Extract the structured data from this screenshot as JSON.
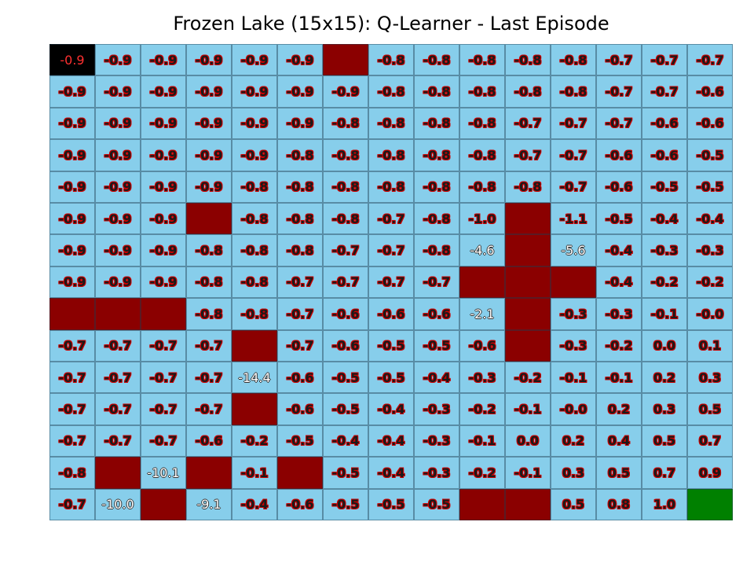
{
  "title": "Frozen Lake (15x15): Q-Learner - Last Episode",
  "colors": {
    "frozen": "#87ceeb",
    "hole": "#8b0000",
    "start": "#000000",
    "goal": "#008000",
    "value_text_outline": "#cc0000"
  },
  "grid_size": [
    15,
    15
  ],
  "cell_types": [
    [
      "S",
      "F",
      "F",
      "F",
      "F",
      "F",
      "H",
      "F",
      "F",
      "F",
      "F",
      "F",
      "F",
      "F",
      "F"
    ],
    [
      "F",
      "F",
      "F",
      "F",
      "F",
      "F",
      "F",
      "F",
      "F",
      "F",
      "F",
      "F",
      "F",
      "F",
      "F"
    ],
    [
      "F",
      "F",
      "F",
      "F",
      "F",
      "F",
      "F",
      "F",
      "F",
      "F",
      "F",
      "F",
      "F",
      "F",
      "F"
    ],
    [
      "F",
      "F",
      "F",
      "F",
      "F",
      "F",
      "F",
      "F",
      "F",
      "F",
      "F",
      "F",
      "F",
      "F",
      "F"
    ],
    [
      "F",
      "F",
      "F",
      "F",
      "F",
      "F",
      "F",
      "F",
      "F",
      "F",
      "F",
      "F",
      "F",
      "F",
      "F"
    ],
    [
      "F",
      "F",
      "F",
      "H",
      "F",
      "F",
      "F",
      "F",
      "F",
      "F",
      "H",
      "F",
      "F",
      "F",
      "F"
    ],
    [
      "F",
      "F",
      "F",
      "F",
      "F",
      "F",
      "F",
      "F",
      "F",
      "F",
      "H",
      "F",
      "F",
      "F",
      "F"
    ],
    [
      "F",
      "F",
      "F",
      "F",
      "F",
      "F",
      "F",
      "F",
      "F",
      "H",
      "H",
      "H",
      "F",
      "F",
      "F"
    ],
    [
      "H",
      "H",
      "H",
      "F",
      "F",
      "F",
      "F",
      "F",
      "F",
      "F",
      "H",
      "F",
      "F",
      "F",
      "F"
    ],
    [
      "F",
      "F",
      "F",
      "F",
      "H",
      "F",
      "F",
      "F",
      "F",
      "F",
      "H",
      "F",
      "F",
      "F",
      "F"
    ],
    [
      "F",
      "F",
      "F",
      "F",
      "F",
      "F",
      "F",
      "F",
      "F",
      "F",
      "F",
      "F",
      "F",
      "F",
      "F"
    ],
    [
      "F",
      "F",
      "F",
      "F",
      "H",
      "F",
      "F",
      "F",
      "F",
      "F",
      "F",
      "F",
      "F",
      "F",
      "F"
    ],
    [
      "F",
      "F",
      "F",
      "F",
      "F",
      "F",
      "F",
      "F",
      "F",
      "F",
      "F",
      "F",
      "F",
      "F",
      "F"
    ],
    [
      "F",
      "H",
      "F",
      "H",
      "F",
      "H",
      "F",
      "F",
      "F",
      "F",
      "F",
      "F",
      "F",
      "F",
      "F"
    ],
    [
      "F",
      "F",
      "H",
      "F",
      "F",
      "F",
      "F",
      "F",
      "F",
      "H",
      "H",
      "F",
      "F",
      "F",
      "G"
    ]
  ],
  "values": [
    [
      "-0.9",
      "-0.9",
      "-0.9",
      "-0.9",
      "-0.9",
      "-0.9",
      "",
      "-0.8",
      "-0.8",
      "-0.8",
      "-0.8",
      "-0.8",
      "-0.7",
      "-0.7",
      "-0.7"
    ],
    [
      "-0.9",
      "-0.9",
      "-0.9",
      "-0.9",
      "-0.9",
      "-0.9",
      "-0.9",
      "-0.8",
      "-0.8",
      "-0.8",
      "-0.8",
      "-0.8",
      "-0.7",
      "-0.7",
      "-0.6"
    ],
    [
      "-0.9",
      "-0.9",
      "-0.9",
      "-0.9",
      "-0.9",
      "-0.9",
      "-0.8",
      "-0.8",
      "-0.8",
      "-0.8",
      "-0.7",
      "-0.7",
      "-0.7",
      "-0.6",
      "-0.6"
    ],
    [
      "-0.9",
      "-0.9",
      "-0.9",
      "-0.9",
      "-0.9",
      "-0.8",
      "-0.8",
      "-0.8",
      "-0.8",
      "-0.8",
      "-0.7",
      "-0.7",
      "-0.6",
      "-0.6",
      "-0.5"
    ],
    [
      "-0.9",
      "-0.9",
      "-0.9",
      "-0.9",
      "-0.8",
      "-0.8",
      "-0.8",
      "-0.8",
      "-0.8",
      "-0.8",
      "-0.8",
      "-0.7",
      "-0.6",
      "-0.5",
      "-0.5"
    ],
    [
      "-0.9",
      "-0.9",
      "-0.9",
      "",
      "-0.8",
      "-0.8",
      "-0.8",
      "-0.7",
      "-0.8",
      "-1.0",
      "",
      "-1.1",
      "-0.5",
      "-0.4",
      "-0.4"
    ],
    [
      "-0.9",
      "-0.9",
      "-0.9",
      "-0.8",
      "-0.8",
      "-0.8",
      "-0.7",
      "-0.7",
      "-0.8",
      "-4.6",
      "",
      "-5.6",
      "-0.4",
      "-0.3",
      "-0.3"
    ],
    [
      "-0.9",
      "-0.9",
      "-0.9",
      "-0.8",
      "-0.8",
      "-0.7",
      "-0.7",
      "-0.7",
      "-0.7",
      "",
      "",
      "",
      "-0.4",
      "-0.2",
      "-0.2"
    ],
    [
      "",
      "",
      "",
      "-0.8",
      "-0.8",
      "-0.7",
      "-0.6",
      "-0.6",
      "-0.6",
      "-2.1",
      "",
      "-0.3",
      "-0.3",
      "-0.1",
      "-0.0"
    ],
    [
      "-0.7",
      "-0.7",
      "-0.7",
      "-0.7",
      "",
      "-0.7",
      "-0.6",
      "-0.5",
      "-0.5",
      "-0.6",
      "",
      "-0.3",
      "-0.2",
      "0.0",
      "0.1"
    ],
    [
      "-0.7",
      "-0.7",
      "-0.7",
      "-0.7",
      "-14.4",
      "-0.6",
      "-0.5",
      "-0.5",
      "-0.4",
      "-0.3",
      "-0.2",
      "-0.1",
      "-0.1",
      "0.2",
      "0.3"
    ],
    [
      "-0.7",
      "-0.7",
      "-0.7",
      "-0.7",
      "",
      "-0.6",
      "-0.5",
      "-0.4",
      "-0.3",
      "-0.2",
      "-0.1",
      "-0.0",
      "0.2",
      "0.3",
      "0.5"
    ],
    [
      "-0.7",
      "-0.7",
      "-0.7",
      "-0.6",
      "-0.2",
      "-0.5",
      "-0.4",
      "-0.4",
      "-0.3",
      "-0.1",
      "0.0",
      "0.2",
      "0.4",
      "0.5",
      "0.7"
    ],
    [
      "-0.8",
      "",
      "-10.1",
      "",
      "-0.1",
      "",
      "-0.5",
      "-0.4",
      "-0.3",
      "-0.2",
      "-0.1",
      "0.3",
      "0.5",
      "0.7",
      "0.9"
    ],
    [
      "-0.7",
      "-10.0",
      "",
      "-9.1",
      "-0.4",
      "-0.6",
      "-0.5",
      "-0.5",
      "-0.5",
      "",
      "",
      "0.5",
      "0.8",
      "1.0",
      ""
    ]
  ]
}
